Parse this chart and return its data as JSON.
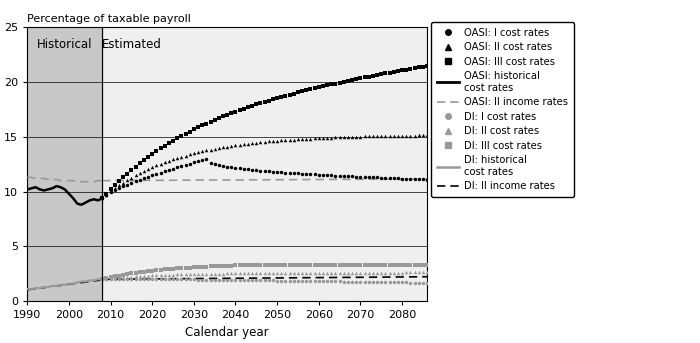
{
  "ylabel": "Percentage of taxable payroll",
  "xlabel": "Calendar year",
  "historical_end": 2008,
  "xlim": [
    1990,
    2086
  ],
  "ylim": [
    0,
    25
  ],
  "yticks": [
    0,
    5,
    10,
    15,
    20,
    25
  ],
  "xticks": [
    1990,
    2000,
    2010,
    2020,
    2030,
    2040,
    2050,
    2060,
    2070,
    2080
  ],
  "historical_label": "Historical",
  "estimated_label": "Estimated",
  "bg_historical": "#c8c8c8",
  "bg_estimated": "#efefef",
  "black": "#000000",
  "gray": "#999999",
  "legend_entries": [
    "OASI: I cost rates",
    "OASI: II cost rates",
    "OASI: III cost rates",
    "OASI: historical\ncost rates",
    "OASI: II income rates",
    "DI: I cost rates",
    "DI: II cost rates",
    "DI: III cost rates",
    "DI: historical\ncost rates",
    "DI: II income rates"
  ]
}
